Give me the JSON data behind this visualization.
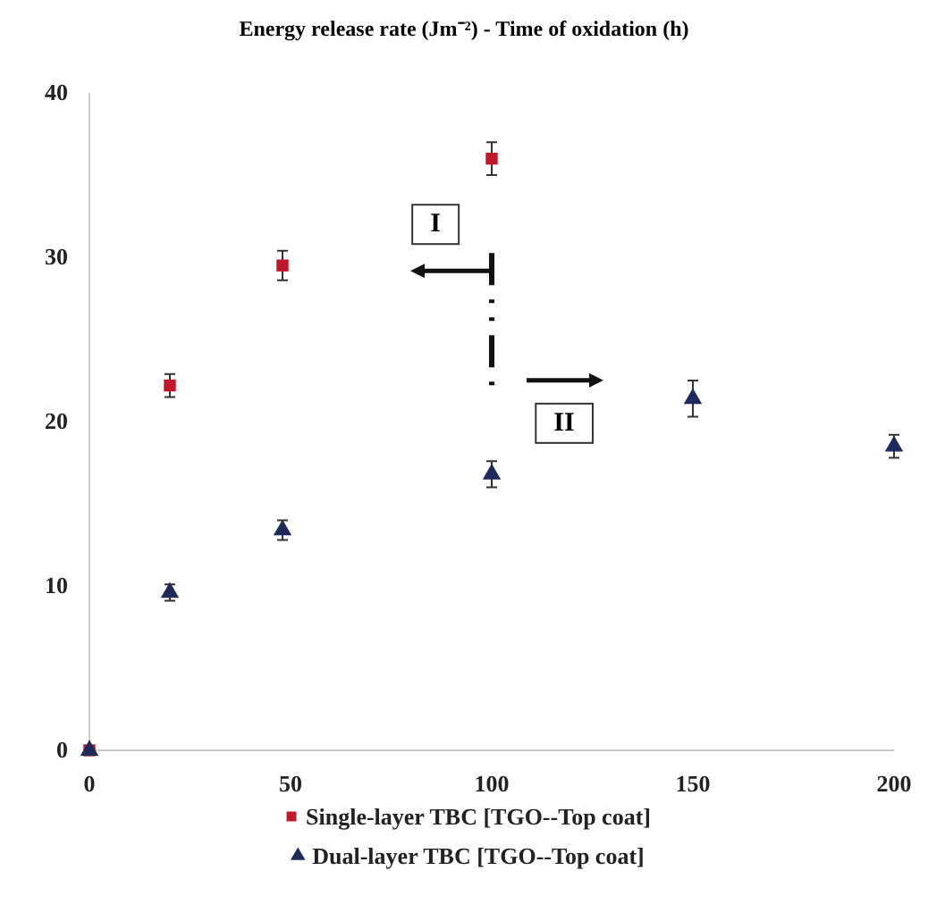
{
  "chart_data": {
    "type": "scatter",
    "title": "Energy release rate (Jm⁻²) - Time of oxidation  (h)",
    "xlim": [
      0,
      200
    ],
    "xticks": [
      0,
      50,
      100,
      150,
      200
    ],
    "ylim": [
      0,
      40
    ],
    "yticks": [
      0,
      10,
      20,
      30,
      40
    ],
    "grid": false,
    "legend": "bottom",
    "series": [
      {
        "name": "Single-layer TBC [TGO--Top coat]",
        "color": "#c0182a",
        "marker": "square",
        "x": [
          0,
          20,
          48,
          100
        ],
        "values": [
          0,
          22.2,
          29.5,
          36.0
        ],
        "errors": [
          null,
          0.7,
          0.9,
          1.0
        ]
      },
      {
        "name": "Dual-layer TBC [TGO--Top coat]",
        "color": "#1f2a5c",
        "marker": "triangle",
        "x": [
          0,
          20,
          48,
          100,
          150,
          200
        ],
        "values": [
          0,
          9.6,
          13.4,
          16.8,
          21.4,
          18.5
        ],
        "errors": [
          null,
          0.5,
          0.6,
          0.8,
          1.1,
          0.7
        ]
      }
    ],
    "ref_lines": [
      {
        "axis": "x",
        "value": 100,
        "line_style": "dashed",
        "color": "#111111"
      }
    ],
    "annotations": [
      {
        "text": "I",
        "x": 86,
        "y": 32
      },
      {
        "text": "II",
        "x": 118,
        "y": 19.9
      }
    ]
  }
}
